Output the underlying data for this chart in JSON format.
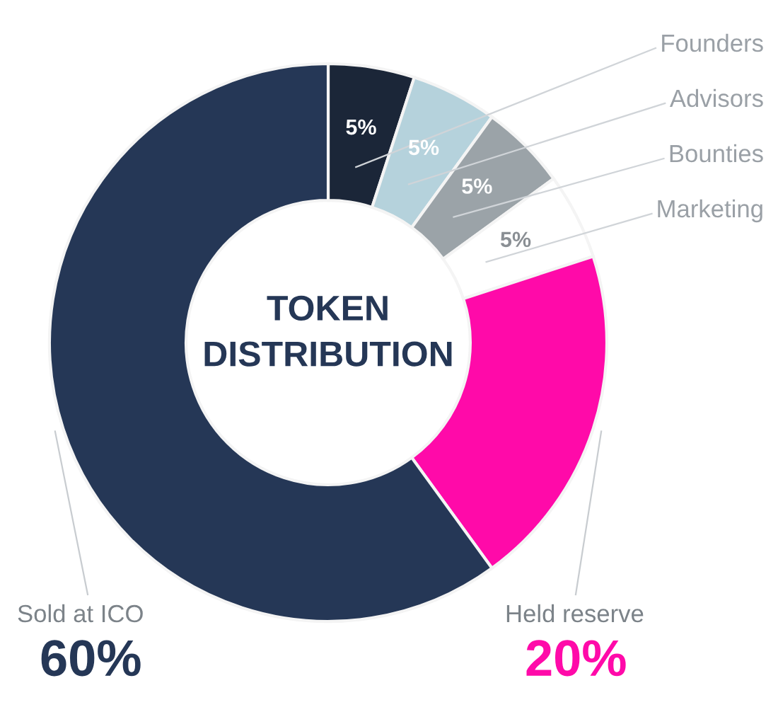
{
  "chart_data": {
    "type": "donut",
    "title": "TOKEN\nDISTRIBUTION",
    "categories": [
      "Founders",
      "Advisors",
      "Bounties",
      "Marketing",
      "Held reserve",
      "Sold at ICO"
    ],
    "values": [
      5,
      5,
      5,
      5,
      20,
      60
    ],
    "colors": [
      "#1b2638",
      "#b5d2dc",
      "#9ba3a8",
      "#ffffff",
      "#ff0aa9",
      "#253756"
    ],
    "value_labels": [
      "5%",
      "5%",
      "5%",
      "5%",
      "20%",
      "60%"
    ]
  }
}
